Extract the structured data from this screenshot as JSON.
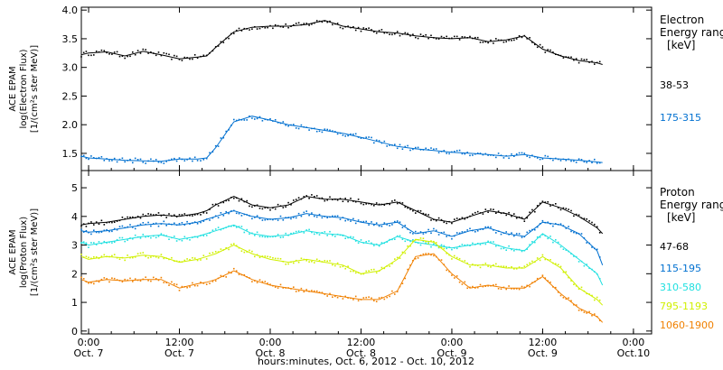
{
  "chart_data": [
    {
      "type": "scatter",
      "instrument_label": "ACE EPAM",
      "ylabel_line1": "log(Electron Flux)",
      "ylabel_line2": "[1/(cm²s ster MeV)]",
      "ylim": [
        1.2,
        4.05
      ],
      "yticks": [
        "4.0",
        "3.5",
        "3.0",
        "2.5",
        "2.0",
        "1.5"
      ],
      "ytick_values": [
        4.0,
        3.5,
        3.0,
        2.5,
        2.0,
        1.5
      ],
      "legend_title_line1": "Electron",
      "legend_title_line2": "Energy ranges",
      "legend_units": "[keV]",
      "x": [
        6.96,
        7.0,
        7.1,
        7.2,
        7.3,
        7.4,
        7.5,
        7.6,
        7.65,
        7.7,
        7.8,
        7.9,
        8.0,
        8.1,
        8.2,
        8.3,
        8.4,
        8.5,
        8.6,
        8.7,
        8.8,
        8.9,
        9.0,
        9.1,
        9.2,
        9.3,
        9.4,
        9.5,
        9.6,
        9.7,
        9.8,
        9.83
      ],
      "series": [
        {
          "name": "38-53",
          "color": "#000000",
          "values": [
            3.22,
            3.25,
            3.27,
            3.2,
            3.28,
            3.22,
            3.15,
            3.18,
            3.2,
            3.35,
            3.62,
            3.7,
            3.72,
            3.72,
            3.75,
            3.82,
            3.72,
            3.67,
            3.62,
            3.6,
            3.55,
            3.52,
            3.5,
            3.52,
            3.45,
            3.48,
            3.55,
            3.32,
            3.2,
            3.12,
            3.08,
            3.05
          ]
        },
        {
          "name": "175-315",
          "color": "#0070d0",
          "values": [
            1.45,
            1.42,
            1.4,
            1.38,
            1.37,
            1.36,
            1.4,
            1.4,
            1.42,
            1.6,
            2.05,
            2.15,
            2.08,
            2.0,
            1.95,
            1.9,
            1.85,
            1.78,
            1.7,
            1.62,
            1.58,
            1.55,
            1.52,
            1.5,
            1.48,
            1.45,
            1.48,
            1.42,
            1.4,
            1.38,
            1.35,
            1.34
          ]
        }
      ]
    },
    {
      "type": "scatter",
      "instrument_label": "ACE EPAM",
      "ylabel_line1": "log(Proton Flux)",
      "ylabel_line2": "[1/(cm²s ster MeV)]",
      "ylim": [
        -0.1,
        5.6
      ],
      "yticks": [
        "5",
        "4",
        "3",
        "2",
        "1",
        "0"
      ],
      "ytick_values": [
        5,
        4,
        3,
        2,
        1,
        0
      ],
      "legend_title_line1": "Proton",
      "legend_title_line2": "Energy ranges",
      "legend_units": "[keV]",
      "x": [
        6.96,
        7.0,
        7.1,
        7.2,
        7.3,
        7.4,
        7.5,
        7.6,
        7.65,
        7.7,
        7.8,
        7.9,
        8.0,
        8.1,
        8.2,
        8.3,
        8.4,
        8.5,
        8.6,
        8.7,
        8.8,
        8.9,
        9.0,
        9.1,
        9.2,
        9.3,
        9.4,
        9.5,
        9.6,
        9.7,
        9.8,
        9.83
      ],
      "series": [
        {
          "name": "47-68",
          "color": "#000000",
          "values": [
            3.7,
            3.75,
            3.8,
            3.9,
            4.0,
            4.05,
            4.0,
            4.1,
            4.2,
            4.4,
            4.7,
            4.4,
            4.3,
            4.4,
            4.7,
            4.6,
            4.6,
            4.5,
            4.4,
            4.5,
            4.2,
            3.9,
            3.8,
            4.0,
            4.2,
            4.1,
            3.9,
            4.5,
            4.3,
            4.0,
            3.6,
            3.4
          ]
        },
        {
          "name": "115-195",
          "color": "#0070d0",
          "values": [
            3.5,
            3.45,
            3.5,
            3.6,
            3.7,
            3.75,
            3.7,
            3.8,
            3.9,
            4.0,
            4.2,
            4.0,
            3.9,
            3.95,
            4.1,
            4.0,
            3.95,
            3.8,
            3.7,
            3.8,
            3.4,
            3.5,
            3.3,
            3.5,
            3.6,
            3.4,
            3.3,
            3.8,
            3.7,
            3.4,
            2.8,
            2.3
          ]
        },
        {
          "name": "310-580",
          "color": "#20e0e0",
          "values": [
            3.1,
            3.0,
            3.1,
            3.2,
            3.3,
            3.35,
            3.2,
            3.3,
            3.4,
            3.5,
            3.7,
            3.4,
            3.3,
            3.35,
            3.5,
            3.4,
            3.35,
            3.1,
            3.0,
            3.3,
            3.1,
            3.0,
            2.9,
            3.0,
            3.1,
            2.9,
            2.8,
            3.4,
            3.0,
            2.5,
            2.0,
            1.6
          ]
        },
        {
          "name": "795-1193",
          "color": "#d0f000",
          "values": [
            2.6,
            2.5,
            2.6,
            2.55,
            2.65,
            2.6,
            2.4,
            2.5,
            2.6,
            2.7,
            3.0,
            2.7,
            2.5,
            2.4,
            2.5,
            2.4,
            2.3,
            2.0,
            2.1,
            2.5,
            3.2,
            3.1,
            2.6,
            2.3,
            2.3,
            2.2,
            2.2,
            2.6,
            2.2,
            1.5,
            1.1,
            0.9
          ]
        },
        {
          "name": "1060-1900",
          "color": "#f08000",
          "values": [
            1.8,
            1.7,
            1.8,
            1.75,
            1.8,
            1.8,
            1.5,
            1.65,
            1.7,
            1.8,
            2.1,
            1.8,
            1.6,
            1.5,
            1.4,
            1.3,
            1.2,
            1.1,
            1.1,
            1.4,
            2.6,
            2.7,
            2.0,
            1.5,
            1.6,
            1.5,
            1.5,
            1.9,
            1.3,
            0.8,
            0.5,
            0.3
          ]
        }
      ]
    }
  ],
  "x_axis": {
    "xlim": [
      6.96,
      10.1
    ],
    "ticks": [
      {
        "pos": 7.0,
        "time": "0:00",
        "date": "Oct. 7"
      },
      {
        "pos": 7.5,
        "time": "12:00",
        "date": "Oct. 7"
      },
      {
        "pos": 8.0,
        "time": "0:00",
        "date": "Oct. 8"
      },
      {
        "pos": 8.5,
        "time": "12:00",
        "date": "Oct. 8"
      },
      {
        "pos": 9.0,
        "time": "0:00",
        "date": "Oct. 9"
      },
      {
        "pos": 9.5,
        "time": "12:00",
        "date": "Oct. 9"
      },
      {
        "pos": 10.0,
        "time": "0:00",
        "date": "Oct.10"
      }
    ],
    "xlabel": "hours:minutes, Oct.  6, 2012 - Oct. 10, 2012"
  }
}
